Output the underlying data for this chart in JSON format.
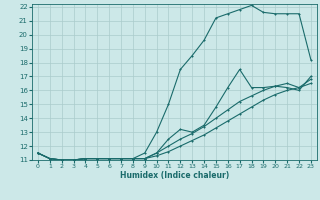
{
  "xlabel": "Humidex (Indice chaleur)",
  "bg_color": "#cce8e8",
  "grid_color": "#aacccc",
  "line_color": "#1a6b6b",
  "xlim": [
    -0.5,
    23.5
  ],
  "ylim": [
    11,
    22.2
  ],
  "xticks": [
    0,
    1,
    2,
    3,
    4,
    5,
    6,
    7,
    8,
    9,
    10,
    11,
    12,
    13,
    14,
    15,
    16,
    17,
    18,
    19,
    20,
    21,
    22,
    23
  ],
  "yticks": [
    11,
    12,
    13,
    14,
    15,
    16,
    17,
    18,
    19,
    20,
    21,
    22
  ],
  "line1_x": [
    0,
    1,
    2,
    3,
    4,
    5,
    6,
    7,
    8,
    9,
    10,
    11,
    12,
    13,
    14,
    15,
    16,
    17,
    18,
    19,
    20,
    21,
    22,
    23
  ],
  "line1_y": [
    11.5,
    11.1,
    11.0,
    11.0,
    11.1,
    11.1,
    11.1,
    11.1,
    11.1,
    11.5,
    13.0,
    15.0,
    17.5,
    18.5,
    19.6,
    21.2,
    21.5,
    21.8,
    22.1,
    21.6,
    21.5,
    21.5,
    21.5,
    18.2
  ],
  "line2_x": [
    0,
    1,
    2,
    3,
    4,
    5,
    6,
    7,
    8,
    9,
    10,
    11,
    12,
    13,
    14,
    15,
    16,
    17,
    18,
    19,
    20,
    21,
    22,
    23
  ],
  "line2_y": [
    11.5,
    11.1,
    11.0,
    11.0,
    11.1,
    11.1,
    11.1,
    11.1,
    11.1,
    11.1,
    11.5,
    12.5,
    13.2,
    13.0,
    13.5,
    14.8,
    16.2,
    17.5,
    16.2,
    16.2,
    16.3,
    16.2,
    16.0,
    17.0
  ],
  "line3_x": [
    0,
    1,
    2,
    3,
    4,
    5,
    6,
    7,
    8,
    9,
    10,
    11,
    12,
    13,
    14,
    15,
    16,
    17,
    18,
    19,
    20,
    21,
    22,
    23
  ],
  "line3_y": [
    11.5,
    11.1,
    11.0,
    11.0,
    11.1,
    11.1,
    11.1,
    11.1,
    11.1,
    11.1,
    11.3,
    11.6,
    12.0,
    12.4,
    12.8,
    13.3,
    13.8,
    14.3,
    14.8,
    15.3,
    15.7,
    16.0,
    16.2,
    16.5
  ],
  "line4_x": [
    0,
    1,
    2,
    3,
    4,
    5,
    6,
    7,
    8,
    9,
    10,
    11,
    12,
    13,
    14,
    15,
    16,
    17,
    18,
    19,
    20,
    21,
    22,
    23
  ],
  "line4_y": [
    11.5,
    11.1,
    11.0,
    11.0,
    11.1,
    11.1,
    11.1,
    11.1,
    11.1,
    11.1,
    11.5,
    12.0,
    12.5,
    12.9,
    13.4,
    14.0,
    14.6,
    15.2,
    15.6,
    16.0,
    16.3,
    16.5,
    16.2,
    16.8
  ]
}
